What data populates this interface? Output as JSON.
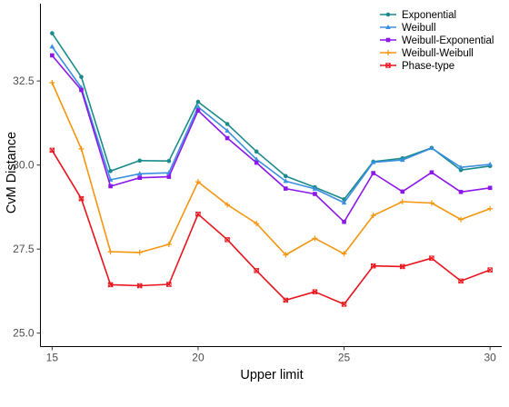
{
  "chart_data": {
    "type": "line",
    "xlabel": "Upper limit",
    "ylabel": "CvM Distance",
    "xlim": [
      14.6,
      30.4
    ],
    "ylim": [
      24.6,
      34.8
    ],
    "x_ticks": [
      15,
      20,
      25,
      30
    ],
    "y_ticks": [
      25.0,
      27.5,
      30.0,
      32.5
    ],
    "x_tick_labels": [
      "15",
      "20",
      "25",
      "30"
    ],
    "y_tick_labels": [
      "25.0",
      "27.5",
      "30.0",
      "32.5"
    ],
    "grid": false,
    "legend_position": "top-right",
    "x": [
      15,
      16,
      17,
      18,
      19,
      20,
      21,
      22,
      23,
      24,
      25,
      26,
      27,
      28,
      29,
      30
    ],
    "series": [
      {
        "name": "Exponential",
        "color": "#1b8a8a",
        "marker": "circle",
        "values": [
          33.92,
          32.62,
          29.82,
          30.13,
          30.12,
          31.88,
          31.22,
          30.4,
          29.67,
          29.34,
          28.98,
          30.1,
          30.2,
          30.51,
          29.85,
          29.97
        ]
      },
      {
        "name": "Weibull",
        "color": "#3b8fe0",
        "marker": "triangle",
        "values": [
          33.52,
          32.3,
          29.56,
          29.74,
          29.77,
          31.73,
          31.02,
          30.17,
          29.52,
          29.29,
          28.88,
          30.08,
          30.15,
          30.5,
          29.93,
          30.02
        ]
      },
      {
        "name": "Weibull-Exponential",
        "color": "#8b17e8",
        "marker": "square",
        "values": [
          33.26,
          32.23,
          29.37,
          29.62,
          29.65,
          31.62,
          30.8,
          30.07,
          29.3,
          29.14,
          28.31,
          29.76,
          29.21,
          29.78,
          29.2,
          29.32
        ]
      },
      {
        "name": "Weibull-Weibull",
        "color": "#f5950e",
        "marker": "plus",
        "values": [
          32.45,
          30.48,
          27.42,
          27.4,
          27.64,
          29.5,
          28.82,
          28.26,
          27.33,
          27.82,
          27.36,
          28.5,
          28.91,
          28.87,
          28.38,
          28.7
        ]
      },
      {
        "name": "Phase-type",
        "color": "#e8141c",
        "marker": "cross",
        "values": [
          30.44,
          29.0,
          26.44,
          26.41,
          26.45,
          28.54,
          27.78,
          26.86,
          25.98,
          26.23,
          25.86,
          27.0,
          26.98,
          27.23,
          26.55,
          26.88
        ]
      }
    ]
  }
}
